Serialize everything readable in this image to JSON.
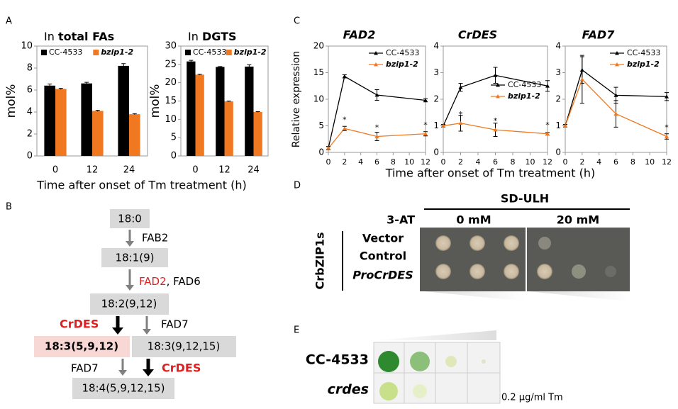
{
  "panel_labels": [
    "A",
    "B",
    "C",
    "D",
    "E"
  ],
  "chart_data": [
    {
      "type": "bar",
      "title": {
        "text": "In",
        "emphasis": "total FAs"
      },
      "categories": [
        "0",
        "12",
        "24"
      ],
      "series": [
        {
          "name": "CC-4533",
          "color": "#000000",
          "values": [
            6.4,
            6.6,
            8.2
          ],
          "errors": [
            0.15,
            0.1,
            0.2
          ]
        },
        {
          "name": "bzip1-2",
          "color": "#f07820",
          "values": [
            6.1,
            4.1,
            3.8
          ],
          "errors": [
            0.05,
            0.05,
            0.05
          ]
        }
      ],
      "ylim": [
        0,
        10
      ],
      "yticks": [
        0,
        2,
        4,
        6,
        8,
        10
      ],
      "ylabel": "mol%",
      "xlabel": "Time after onset of Tm treatment (h)",
      "legend": "top"
    },
    {
      "type": "bar",
      "title": {
        "text": "In",
        "emphasis": "DGTS"
      },
      "categories": [
        "0",
        "12",
        "24"
      ],
      "series": [
        {
          "name": "CC-4533",
          "color": "#000000",
          "values": [
            25.8,
            24.3,
            24.4
          ],
          "errors": [
            0.3,
            0.1,
            0.5
          ]
        },
        {
          "name": "bzip1-2",
          "color": "#f07820",
          "values": [
            22.2,
            14.9,
            12.0
          ],
          "errors": [
            0.1,
            0.1,
            0.1
          ]
        }
      ],
      "ylim": [
        0,
        30
      ],
      "yticks": [
        0,
        5,
        10,
        15,
        20,
        25,
        30
      ],
      "ylabel": "mol%",
      "legend": "top"
    },
    {
      "type": "line",
      "title": "FAD2",
      "x": [
        0,
        2,
        6,
        12
      ],
      "series": [
        {
          "name": "CC-4533",
          "color": "#000000",
          "values": [
            0.8,
            14.3,
            10.8,
            9.8
          ],
          "errors": [
            0.3,
            0.3,
            1.0,
            0.3
          ]
        },
        {
          "name": "bzip1-2",
          "color": "#f07820",
          "values": [
            0.8,
            4.5,
            3.0,
            3.5
          ],
          "errors": [
            0.3,
            0.4,
            0.8,
            0.4
          ],
          "significance": [
            null,
            "*",
            "*",
            "*"
          ]
        }
      ],
      "xlim": [
        0,
        12
      ],
      "xticks": [
        0,
        2,
        4,
        6,
        8,
        10,
        12
      ],
      "ylim": [
        0,
        20
      ],
      "yticks": [
        0,
        5,
        10,
        15,
        20
      ],
      "ylabel": "Relative expression",
      "xlabel": "Time after onset of Tm treatment (h)",
      "legend": "upper right"
    },
    {
      "type": "line",
      "title": "CrDES",
      "x": [
        0,
        2,
        6,
        12
      ],
      "series": [
        {
          "name": "CC-4533",
          "color": "#000000",
          "values": [
            1.0,
            2.45,
            2.9,
            2.5
          ],
          "errors": [
            0.05,
            0.15,
            0.3,
            0.2
          ]
        },
        {
          "name": "bzip1-2",
          "color": "#f07820",
          "values": [
            1.0,
            1.1,
            0.85,
            0.7
          ],
          "errors": [
            0.05,
            0.3,
            0.25,
            0.05
          ],
          "significance": [
            null,
            "*",
            "*",
            "*"
          ]
        }
      ],
      "xlim": [
        0,
        12
      ],
      "xticks": [
        0,
        2,
        4,
        6,
        8,
        10,
        12
      ],
      "ylim": [
        0,
        4
      ],
      "yticks": [
        0,
        1,
        2,
        3,
        4
      ],
      "legend": "center right"
    },
    {
      "type": "line",
      "title": "FAD7",
      "x": [
        0,
        2,
        6,
        12
      ],
      "series": [
        {
          "name": "CC-4533",
          "color": "#000000",
          "values": [
            1.0,
            3.1,
            2.15,
            2.1
          ],
          "errors": [
            0.05,
            0.5,
            0.3,
            0.15
          ]
        },
        {
          "name": "bzip1-2",
          "color": "#f07820",
          "values": [
            1.0,
            2.75,
            1.45,
            0.6
          ],
          "errors": [
            0.05,
            0.9,
            0.5,
            0.1
          ],
          "significance": [
            null,
            null,
            null,
            "*"
          ]
        }
      ],
      "xlim": [
        0,
        12
      ],
      "xticks": [
        0,
        2,
        4,
        6,
        8,
        10,
        12
      ],
      "ylim": [
        0,
        4
      ],
      "yticks": [
        0,
        1,
        2,
        3,
        4
      ],
      "legend": "upper right"
    }
  ],
  "pathway": {
    "nodes": [
      "18:0",
      "18:1(9)",
      "18:2(9,12)",
      "18:3(5,9,12)",
      "18:3(9,12,15)",
      "18:4(5,9,12,15)"
    ],
    "enzymes": [
      "FAB2",
      "FAD2",
      ", FAD6",
      "CrDES",
      "FAD7",
      "FAD7",
      "CrDES"
    ]
  },
  "yeast_assay": {
    "medium": "SD-ULH",
    "inhibitor": "3-AT",
    "concentrations": [
      "0 mM",
      "20 mM"
    ],
    "group": "CrbZIP1s",
    "rows": [
      "Vector",
      "Control",
      "ProCrDES"
    ]
  },
  "growth_assay": {
    "strains": [
      "CC-4533",
      "crdes"
    ],
    "condition": "0.2 µg/ml Tm"
  }
}
